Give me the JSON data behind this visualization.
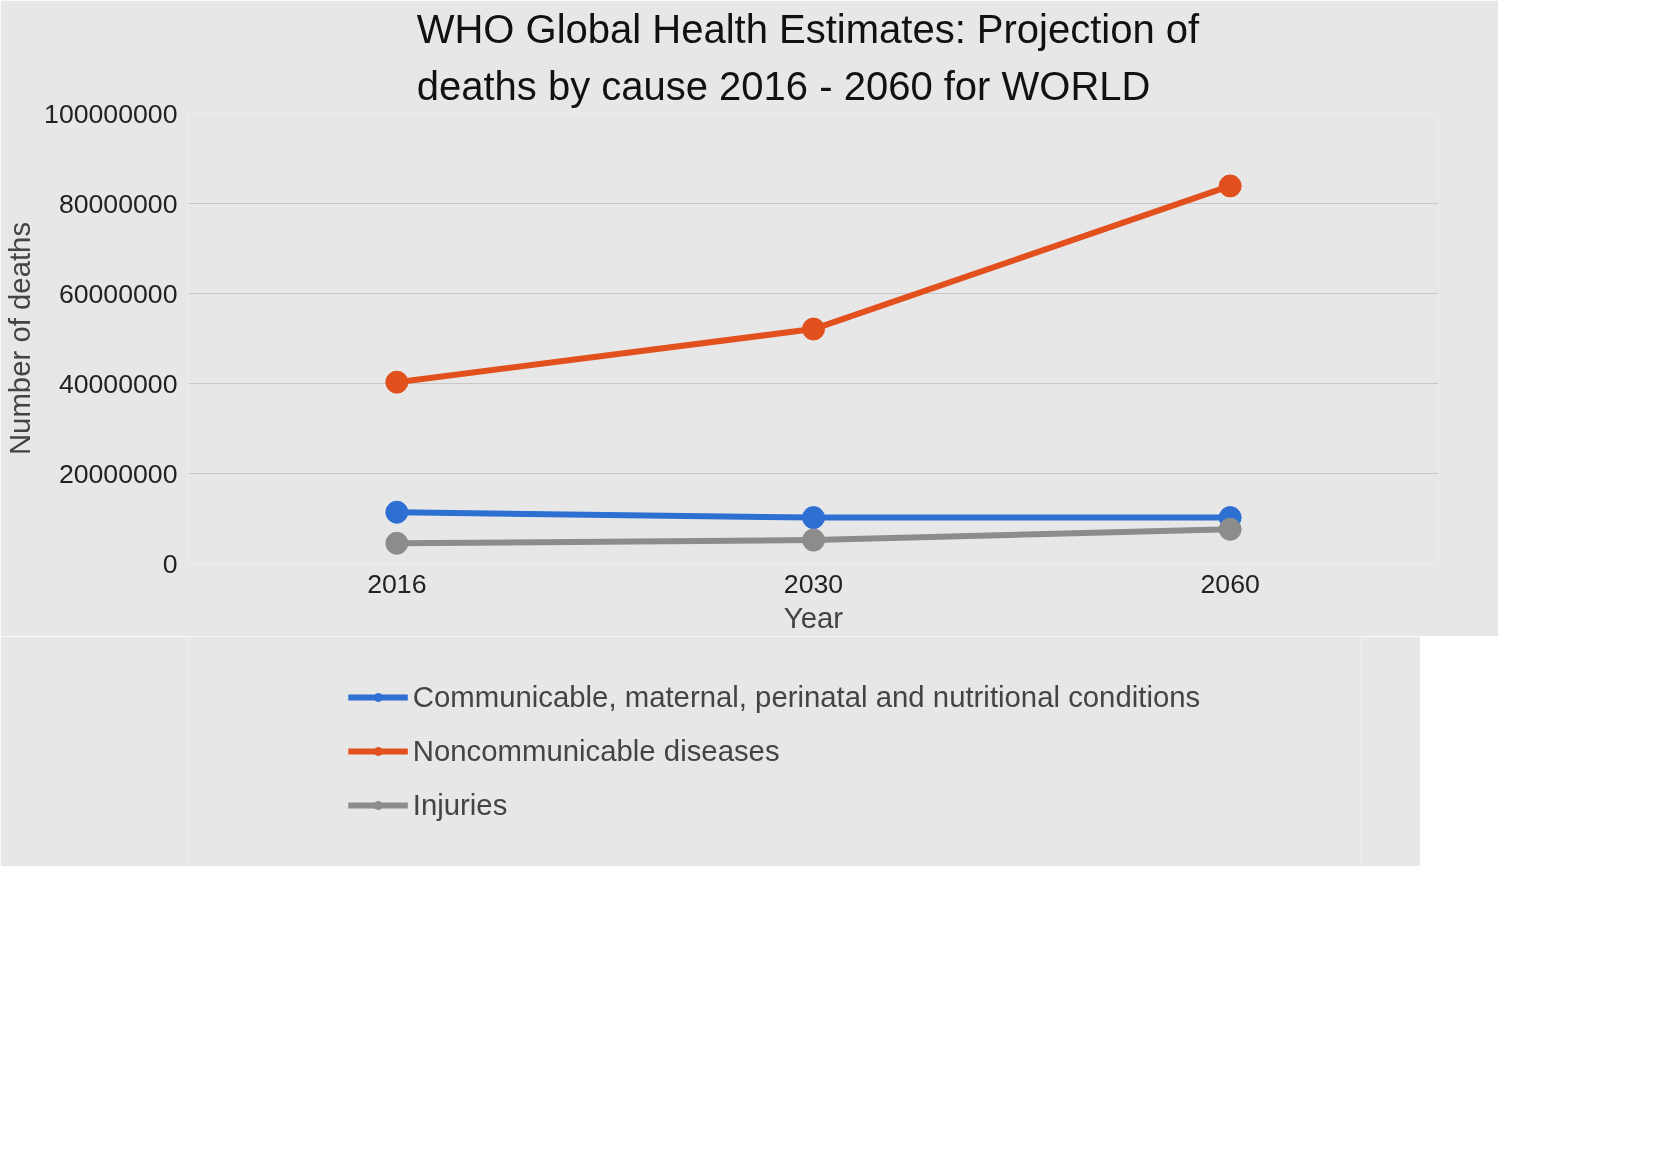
{
  "chart_data": {
    "type": "line",
    "title": "WHO Global Health Estimates:  Projection of deaths by cause 2016 - 2060 for WORLD",
    "xlabel": "Year",
    "ylabel": "Number of deaths",
    "categories": [
      "2016",
      "2030",
      "2060"
    ],
    "series": [
      {
        "name": "Communicable, maternal, perinatal and nutritional conditions",
        "color": "#2e6fd2",
        "values": [
          11400000,
          10200000,
          10200000
        ]
      },
      {
        "name": "Noncommunicable diseases",
        "color": "#e2501e",
        "values": [
          40300000,
          52100000,
          83900000
        ]
      },
      {
        "name": "Injuries",
        "color": "#8c8c8c",
        "values": [
          4500000,
          5200000,
          7600000
        ]
      }
    ],
    "ylim": [
      0,
      100000000
    ],
    "yticks": [
      0,
      20000000,
      40000000,
      60000000,
      80000000,
      100000000
    ],
    "grid": "y",
    "legend": "bottom",
    "marker": "circle",
    "line_style": "solid"
  }
}
